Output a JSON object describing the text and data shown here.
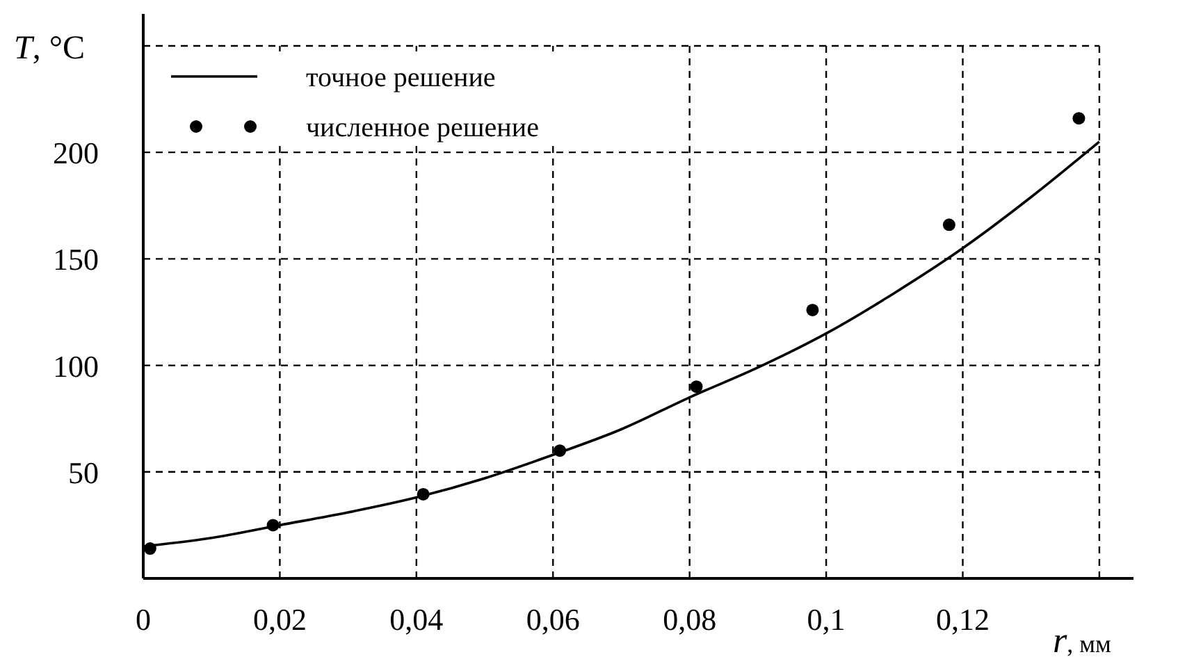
{
  "chart_data": {
    "type": "line",
    "xlabel": "r, мм",
    "ylabel": "T, °C",
    "xlim": [
      0,
      0.145
    ],
    "xticks": [
      {
        "value": 0,
        "label": "0"
      },
      {
        "value": 0.02,
        "label": "0,02"
      },
      {
        "value": 0.04,
        "label": "0,04"
      },
      {
        "value": 0.06,
        "label": "0,06"
      },
      {
        "value": 0.08,
        "label": "0,08"
      },
      {
        "value": 0.1,
        "label": "0,1"
      },
      {
        "value": 0.12,
        "label": "0,12"
      },
      {
        "value": 0.14,
        "label": null
      }
    ],
    "ylim": [
      0,
      265
    ],
    "yticks": [
      50,
      100,
      150,
      200,
      {
        "value": 250,
        "label": null
      }
    ],
    "grid": true,
    "legend": "top left",
    "series": [
      {
        "name": "точное решение",
        "color": "#000000",
        "line_style": "solid",
        "x": [
          0,
          0.01,
          0.02,
          0.03,
          0.04,
          0.05,
          0.06,
          0.07,
          0.08,
          0.09,
          0.1,
          0.11,
          0.12,
          0.13,
          0.14
        ],
        "values": [
          15,
          19,
          25,
          31,
          38,
          47,
          58,
          70,
          85,
          99,
          115,
          134,
          155,
          179,
          205
        ]
      },
      {
        "name": "численное решение",
        "type": "scatter",
        "color": "#000000",
        "marker": "circle",
        "x": [
          0.001,
          0.019,
          0.041,
          0.061,
          0.081,
          0.098,
          0.118,
          0.137
        ],
        "values": [
          14,
          25,
          39.5,
          60,
          90,
          126,
          166,
          216
        ]
      }
    ]
  }
}
